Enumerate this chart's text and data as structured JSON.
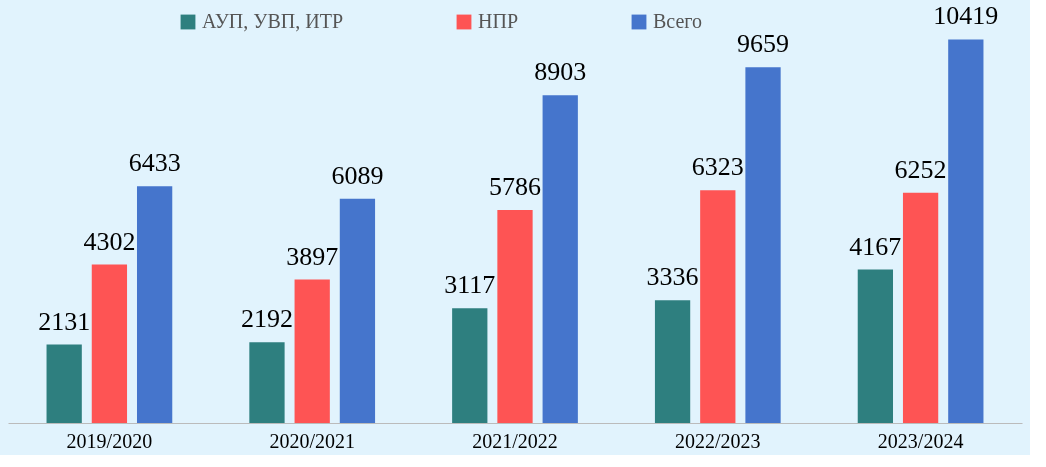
{
  "chart_data": {
    "type": "bar",
    "categories": [
      "2019/2020",
      "2020/2021",
      "2021/2022",
      "2022/2023",
      "2023/2024"
    ],
    "series": [
      {
        "name": "АУП, УВП, ИТР",
        "color": "#2e7f7f",
        "values": [
          2131,
          2192,
          3117,
          3336,
          4167
        ]
      },
      {
        "name": "НПР",
        "color": "#fe5454",
        "values": [
          4302,
          3897,
          5786,
          6323,
          6252
        ]
      },
      {
        "name": "Всего",
        "color": "#4575cc",
        "values": [
          6433,
          6089,
          8903,
          9659,
          10419
        ]
      }
    ],
    "data_labels": true,
    "legend": "top",
    "tick_labels": "x"
  }
}
